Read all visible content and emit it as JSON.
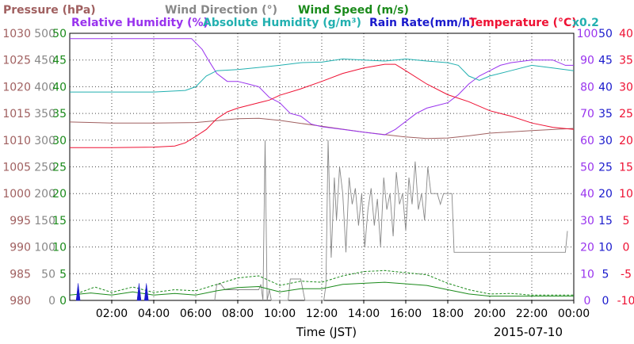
{
  "chart_data": {
    "type": "line",
    "date_label": "2015-07-10",
    "xlabel": "Time (JST)",
    "x_ticks": [
      "02:00",
      "04:00",
      "06:00",
      "08:00",
      "10:00",
      "12:00",
      "14:00",
      "16:00",
      "18:00",
      "20:00",
      "22:00",
      "00:00"
    ],
    "xlim_hours": [
      0,
      24
    ],
    "grid": true,
    "legend": [
      {
        "text": "Pressure (hPa)",
        "color": "#a06060"
      },
      {
        "text": "Wind Direction (°)",
        "color": "#888888"
      },
      {
        "text": "Wind Speed (m/s)",
        "color": "#1a8a1a"
      },
      {
        "text": "Relative Humidity (%)",
        "color": "#9933ee"
      },
      {
        "text": "Absolute Humidity (g/m³)",
        "color": "#22b0b0"
      },
      {
        "text": "Rain Rate(mm/h)",
        "color": "#1a1acc"
      },
      {
        "text": "Temperature (°C)",
        "color": "#ee1133"
      },
      {
        "text": "x0.2",
        "color": "#22b0b0"
      }
    ],
    "axes": {
      "pressure": {
        "color": "#a06060",
        "range": [
          980,
          1030
        ],
        "ticks": [
          "980",
          "985",
          "990",
          "995",
          "1000",
          "1005",
          "1010",
          "1015",
          "1020",
          "1025",
          "1030"
        ]
      },
      "wind_direction": {
        "color": "#888888",
        "range": [
          0,
          500
        ],
        "ticks": [
          "0",
          "50",
          "100",
          "150",
          "200",
          "250",
          "300",
          "350",
          "400",
          "450",
          "500"
        ]
      },
      "wind_speed": {
        "color": "#1a8a1a",
        "range": [
          0,
          50
        ],
        "ticks": [
          "0",
          "5",
          "10",
          "15",
          "20",
          "25",
          "30",
          "35",
          "40",
          "45",
          "50"
        ]
      },
      "relative_humidity": {
        "color": "#9933ee",
        "range": [
          0,
          100
        ],
        "ticks": [
          "0",
          "10",
          "20",
          "30",
          "40",
          "50",
          "60",
          "70",
          "80",
          "90",
          "100"
        ]
      },
      "rain_rate": {
        "color": "#1a1acc",
        "range": [
          0,
          50
        ],
        "ticks": [
          "0",
          "5",
          "10",
          "15",
          "20",
          "25",
          "30",
          "35",
          "40",
          "45",
          "50"
        ]
      },
      "temperature": {
        "color": "#ee1133",
        "range": [
          -10,
          40
        ],
        "ticks": [
          "-10",
          "-5",
          "0",
          "5",
          "10",
          "15",
          "20",
          "25",
          "30",
          "35",
          "40"
        ]
      }
    },
    "series": [
      {
        "key": "pressure",
        "axis": "pressure",
        "color": "#a06060",
        "points": [
          [
            0,
            1013.4
          ],
          [
            2,
            1013.2
          ],
          [
            4,
            1013.2
          ],
          [
            6,
            1013.3
          ],
          [
            8,
            1014.0
          ],
          [
            9,
            1014.1
          ],
          [
            10,
            1013.7
          ],
          [
            12,
            1012.6
          ],
          [
            14,
            1011.5
          ],
          [
            16,
            1010.6
          ],
          [
            17,
            1010.3
          ],
          [
            18,
            1010.4
          ],
          [
            19,
            1010.8
          ],
          [
            20,
            1011.3
          ],
          [
            22,
            1011.8
          ],
          [
            24,
            1012.2
          ]
        ]
      },
      {
        "key": "relative_humidity",
        "axis": "relative_humidity",
        "color": "#9933ee",
        "points": [
          [
            0,
            98
          ],
          [
            2,
            98
          ],
          [
            4,
            98
          ],
          [
            5.8,
            98
          ],
          [
            6.3,
            94
          ],
          [
            6.6,
            90
          ],
          [
            7,
            85
          ],
          [
            7.5,
            82
          ],
          [
            8,
            82
          ],
          [
            8.5,
            81
          ],
          [
            9,
            80
          ],
          [
            9.5,
            76
          ],
          [
            10,
            74
          ],
          [
            10.5,
            70
          ],
          [
            11,
            69
          ],
          [
            11.5,
            66
          ],
          [
            12,
            65
          ],
          [
            13,
            64
          ],
          [
            14,
            63
          ],
          [
            15,
            62
          ],
          [
            15.5,
            64
          ],
          [
            16,
            67
          ],
          [
            16.5,
            70
          ],
          [
            17,
            72
          ],
          [
            17.5,
            73
          ],
          [
            18,
            74
          ],
          [
            18.5,
            77
          ],
          [
            19,
            81
          ],
          [
            19.5,
            84
          ],
          [
            20,
            86
          ],
          [
            20.5,
            88
          ],
          [
            21,
            89
          ],
          [
            22,
            90
          ],
          [
            23,
            90
          ],
          [
            23.6,
            88
          ],
          [
            24,
            88
          ]
        ]
      },
      {
        "key": "absolute_humidity",
        "axis": "wind_speed",
        "color": "#22b0b0",
        "points": [
          [
            0,
            39
          ],
          [
            2,
            39
          ],
          [
            4,
            39
          ],
          [
            5.5,
            39.3
          ],
          [
            6,
            40
          ],
          [
            6.5,
            42
          ],
          [
            7,
            43
          ],
          [
            8,
            43.2
          ],
          [
            9,
            43.6
          ],
          [
            10,
            44
          ],
          [
            11,
            44.5
          ],
          [
            12,
            44.6
          ],
          [
            13,
            45.2
          ],
          [
            14,
            45
          ],
          [
            15,
            44.8
          ],
          [
            16,
            45.2
          ],
          [
            17,
            44.8
          ],
          [
            18,
            44.5
          ],
          [
            18.5,
            44
          ],
          [
            19,
            42
          ],
          [
            19.5,
            41.2
          ],
          [
            20,
            42
          ],
          [
            21,
            43
          ],
          [
            22,
            44
          ],
          [
            23,
            43.5
          ],
          [
            24,
            43
          ]
        ]
      },
      {
        "key": "temperature",
        "axis": "temperature",
        "color": "#ee1133",
        "points": [
          [
            0,
            18.6
          ],
          [
            2,
            18.6
          ],
          [
            4,
            18.7
          ],
          [
            5,
            18.9
          ],
          [
            5.5,
            19.5
          ],
          [
            6,
            20.7
          ],
          [
            6.5,
            22
          ],
          [
            7,
            24
          ],
          [
            7.5,
            25.3
          ],
          [
            8,
            26
          ],
          [
            8.5,
            26.5
          ],
          [
            9,
            27
          ],
          [
            9.5,
            27.5
          ],
          [
            10,
            28.4
          ],
          [
            11,
            29.6
          ],
          [
            12,
            31
          ],
          [
            13,
            32.5
          ],
          [
            14,
            33.5
          ],
          [
            15,
            34.2
          ],
          [
            15.5,
            34.2
          ],
          [
            16,
            33
          ],
          [
            17,
            30.5
          ],
          [
            18,
            28.5
          ],
          [
            19,
            27.2
          ],
          [
            20,
            25.5
          ],
          [
            21,
            24.5
          ],
          [
            22,
            23.2
          ],
          [
            23,
            22.4
          ],
          [
            24,
            22
          ]
        ]
      },
      {
        "key": "wind_direction",
        "axis": "wind_direction",
        "color": "#888888",
        "points": [
          [
            6.9,
            0
          ],
          [
            7,
            30
          ],
          [
            7.2,
            30
          ],
          [
            7.4,
            20
          ],
          [
            9,
            20
          ],
          [
            9.1,
            30
          ],
          [
            9.2,
            0
          ],
          [
            9.3,
            300
          ],
          [
            9.4,
            0
          ],
          [
            9.5,
            20
          ],
          [
            9.6,
            0
          ],
          [
            10.4,
            0
          ],
          [
            10.5,
            40
          ],
          [
            11,
            40
          ],
          [
            11.2,
            0
          ],
          [
            12.1,
            0
          ],
          [
            12.2,
            30
          ],
          [
            12.3,
            300
          ],
          [
            12.45,
            80
          ],
          [
            12.6,
            230
          ],
          [
            12.7,
            150
          ],
          [
            12.85,
            250
          ],
          [
            13,
            200
          ],
          [
            13.15,
            90
          ],
          [
            13.3,
            230
          ],
          [
            13.45,
            180
          ],
          [
            13.6,
            210
          ],
          [
            13.75,
            140
          ],
          [
            13.9,
            200
          ],
          [
            14.05,
            100
          ],
          [
            14.2,
            170
          ],
          [
            14.35,
            210
          ],
          [
            14.5,
            140
          ],
          [
            14.65,
            190
          ],
          [
            14.8,
            100
          ],
          [
            14.95,
            230
          ],
          [
            15.1,
            170
          ],
          [
            15.25,
            200
          ],
          [
            15.4,
            120
          ],
          [
            15.55,
            240
          ],
          [
            15.7,
            180
          ],
          [
            15.85,
            200
          ],
          [
            16,
            130
          ],
          [
            16.15,
            230
          ],
          [
            16.3,
            180
          ],
          [
            16.45,
            260
          ],
          [
            16.6,
            170
          ],
          [
            16.75,
            200
          ],
          [
            16.9,
            150
          ],
          [
            17.05,
            250
          ],
          [
            17.2,
            200
          ],
          [
            17.35,
            200
          ],
          [
            17.5,
            200
          ],
          [
            17.65,
            180
          ],
          [
            17.8,
            200
          ],
          [
            18.2,
            200
          ],
          [
            18.3,
            90
          ],
          [
            23.6,
            90
          ],
          [
            23.7,
            130
          ]
        ]
      },
      {
        "key": "wind_speed",
        "axis": "wind_speed",
        "color": "#1a8a1a",
        "points": [
          [
            0,
            1
          ],
          [
            1,
            1.4
          ],
          [
            2,
            1
          ],
          [
            3,
            1.6
          ],
          [
            4,
            1
          ],
          [
            5,
            1.3
          ],
          [
            6,
            1
          ],
          [
            7,
            1.8
          ],
          [
            8,
            2.4
          ],
          [
            9,
            2.6
          ],
          [
            10,
            1.6
          ],
          [
            11,
            2.2
          ],
          [
            12,
            2.2
          ],
          [
            13,
            3
          ],
          [
            14,
            3.2
          ],
          [
            15,
            3.4
          ],
          [
            16,
            3.1
          ],
          [
            17,
            2.8
          ],
          [
            18,
            2
          ],
          [
            19,
            1.2
          ],
          [
            20,
            0.8
          ],
          [
            21,
            0.8
          ],
          [
            22,
            0.8
          ],
          [
            23,
            0.8
          ],
          [
            24,
            0.8
          ]
        ]
      },
      {
        "key": "wind_gust",
        "axis": "wind_speed",
        "color": "#1a8a1a",
        "points": [
          [
            0.5,
            1.5
          ],
          [
            1.2,
            2.5
          ],
          [
            2,
            1.5
          ],
          [
            3,
            2.5
          ],
          [
            4,
            1.5
          ],
          [
            5,
            2
          ],
          [
            6,
            1.8
          ],
          [
            7,
            3
          ],
          [
            8,
            4.2
          ],
          [
            9,
            4.6
          ],
          [
            10,
            2.8
          ],
          [
            11,
            3.6
          ],
          [
            12,
            3.4
          ],
          [
            13,
            4.6
          ],
          [
            14,
            5.4
          ],
          [
            15,
            5.6
          ],
          [
            16,
            5.2
          ],
          [
            17,
            4.8
          ],
          [
            18,
            3.2
          ],
          [
            19,
            2
          ],
          [
            20,
            1.2
          ],
          [
            21,
            1.3
          ],
          [
            22,
            1
          ],
          [
            23,
            1
          ],
          [
            24,
            1
          ]
        ]
      }
    ],
    "rain_rate_spikes": [
      [
        0.4,
        3.2
      ],
      [
        3.3,
        3.2
      ],
      [
        3.65,
        3.2
      ]
    ]
  }
}
